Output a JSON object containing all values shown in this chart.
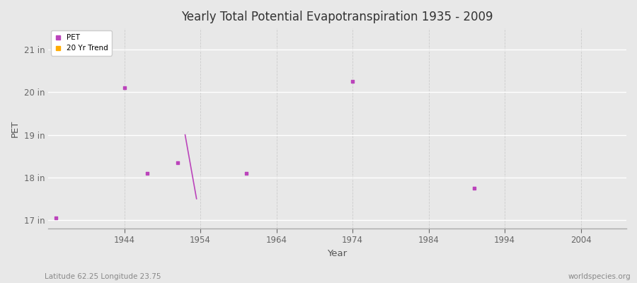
{
  "title": "Yearly Total Potential Evapotranspiration 1935 - 2009",
  "xlabel": "Year",
  "ylabel": "PET",
  "subtitle_left": "Latitude 62.25 Longitude 23.75",
  "subtitle_right": "worldspecies.org",
  "xlim": [
    1934,
    2010
  ],
  "ylim": [
    16.8,
    21.5
  ],
  "yticks": [
    17,
    18,
    19,
    20,
    21
  ],
  "ytick_labels": [
    "17 in",
    "18 in",
    "19 in",
    "20 in",
    "21 in"
  ],
  "xticks": [
    1944,
    1954,
    1964,
    1974,
    1984,
    1994,
    2004
  ],
  "background_color": "#e8e8e8",
  "plot_bg_color": "#e8e8e8",
  "grid_color_h": "#ffffff",
  "grid_color_v": "#cccccc",
  "pet_color": "#bb44bb",
  "trend_color": "#ffaa00",
  "pet_points": [
    [
      1935,
      17.05
    ],
    [
      1944,
      20.1
    ],
    [
      1947,
      18.1
    ],
    [
      1951,
      18.35
    ],
    [
      1960,
      18.1
    ],
    [
      1974,
      20.25
    ],
    [
      1990,
      17.75
    ]
  ],
  "trend_line": [
    [
      1952,
      19.0
    ],
    [
      1953.5,
      17.5
    ]
  ],
  "legend_pet_label": "PET",
  "legend_trend_label": "20 Yr Trend"
}
